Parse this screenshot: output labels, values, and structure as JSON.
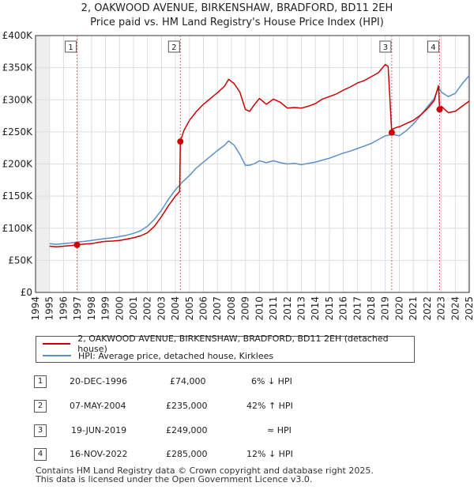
{
  "title_line1": "2, OAKWOOD AVENUE, BIRKENSHAW, BRADFORD, BD11 2EH",
  "title_line2": "Price paid vs. HM Land Registry's House Price Index (HPI)",
  "colors": {
    "property": "#cc0000",
    "hpi": "#5b8fc9",
    "grid": "#dddddd",
    "axis": "#333333",
    "shade": "#eeeeee",
    "vline": "#e06666"
  },
  "chart_data": {
    "type": "line",
    "title": "2, OAKWOOD AVENUE, BIRKENSHAW, BRADFORD, BD11 2EH - Price paid vs. HM Land Registry's House Price Index (HPI)",
    "xlabel": "",
    "ylabel": "",
    "xlim": [
      1994,
      2025
    ],
    "ylim": [
      0,
      400000
    ],
    "grid": true,
    "legend_position": "below",
    "y_ticks": [
      0,
      50000,
      100000,
      150000,
      200000,
      250000,
      300000,
      350000,
      400000
    ],
    "y_tick_labels": [
      "£0",
      "£50K",
      "£100K",
      "£150K",
      "£200K",
      "£250K",
      "£300K",
      "£350K",
      "£400K"
    ],
    "x_ticks": [
      "1994",
      "1995",
      "1996",
      "1997",
      "1998",
      "1999",
      "2000",
      "2001",
      "2002",
      "2003",
      "2004",
      "2005",
      "2006",
      "2007",
      "2008",
      "2009",
      "2010",
      "2011",
      "2012",
      "2013",
      "2014",
      "2015",
      "2016",
      "2017",
      "2018",
      "2019",
      "2020",
      "2021",
      "2022",
      "2023",
      "2024",
      "2025"
    ],
    "series": [
      {
        "name": "2, OAKWOOD AVENUE, BIRKENSHAW, BRADFORD, BD11 2EH (detached house)",
        "x": [
          1995.0,
          1995.5,
          1996.0,
          1996.5,
          1996.97,
          1997.5,
          1998.0,
          1998.5,
          1999.0,
          1999.5,
          2000.0,
          2000.5,
          2001.0,
          2001.5,
          2002.0,
          2002.5,
          2003.0,
          2003.5,
          2004.0,
          2004.3,
          2004.35,
          2004.6,
          2005.0,
          2005.5,
          2006.0,
          2006.5,
          2007.0,
          2007.5,
          2007.8,
          2008.2,
          2008.6,
          2009.0,
          2009.3,
          2009.7,
          2010.0,
          2010.5,
          2011.0,
          2011.5,
          2012.0,
          2012.5,
          2013.0,
          2013.5,
          2014.0,
          2014.5,
          2015.0,
          2015.5,
          2016.0,
          2016.5,
          2017.0,
          2017.5,
          2018.0,
          2018.5,
          2019.0,
          2019.2,
          2019.46,
          2019.5,
          2019.8,
          2020.0,
          2020.5,
          2021.0,
          2021.5,
          2022.0,
          2022.5,
          2022.8,
          2022.88,
          2023.0,
          2023.5,
          2024.0,
          2024.5,
          2025.0
        ],
        "values": [
          72000,
          71000,
          72000,
          73000,
          74000,
          75500,
          76000,
          78000,
          79500,
          80000,
          81000,
          83000,
          85000,
          88000,
          93000,
          103000,
          118000,
          135000,
          150000,
          157000,
          235000,
          252000,
          268000,
          282000,
          293000,
          302000,
          311000,
          321000,
          332000,
          325000,
          312000,
          285000,
          282000,
          294000,
          302000,
          293000,
          301000,
          296000,
          287000,
          288000,
          287000,
          290000,
          294000,
          301000,
          305000,
          309000,
          315000,
          320000,
          326000,
          330000,
          336000,
          342000,
          355000,
          352000,
          249000,
          254000,
          257000,
          258000,
          263000,
          268000,
          276000,
          286000,
          299000,
          322000,
          285000,
          290000,
          280000,
          282000,
          290000,
          298000
        ]
      },
      {
        "name": "HPI: Average price, detached house, Kirklees",
        "x": [
          1995.0,
          1995.5,
          1996.0,
          1996.5,
          1997.0,
          1997.5,
          1998.0,
          1998.5,
          1999.0,
          1999.5,
          2000.0,
          2000.5,
          2001.0,
          2001.5,
          2002.0,
          2002.5,
          2003.0,
          2003.5,
          2004.0,
          2004.5,
          2005.0,
          2005.5,
          2006.0,
          2006.5,
          2007.0,
          2007.5,
          2007.8,
          2008.2,
          2008.6,
          2009.0,
          2009.3,
          2009.7,
          2010.0,
          2010.5,
          2011.0,
          2011.5,
          2012.0,
          2012.5,
          2013.0,
          2013.5,
          2014.0,
          2014.5,
          2015.0,
          2015.5,
          2016.0,
          2016.5,
          2017.0,
          2017.5,
          2018.0,
          2018.5,
          2019.0,
          2019.5,
          2020.0,
          2020.5,
          2021.0,
          2021.5,
          2022.0,
          2022.5,
          2022.8,
          2023.0,
          2023.5,
          2024.0,
          2024.5,
          2025.0
        ],
        "values": [
          76000,
          75000,
          76000,
          77000,
          78500,
          79500,
          81000,
          82500,
          84000,
          85000,
          87000,
          89000,
          92000,
          96000,
          103000,
          114000,
          128000,
          145000,
          160000,
          172000,
          182000,
          194000,
          203000,
          212000,
          221000,
          229000,
          236000,
          229000,
          215000,
          198000,
          198000,
          201000,
          205000,
          202000,
          205000,
          202000,
          200000,
          201000,
          199000,
          201000,
          203000,
          206000,
          209000,
          213000,
          217000,
          220000,
          224000,
          228000,
          232000,
          238000,
          244000,
          246000,
          244000,
          252000,
          262000,
          275000,
          289000,
          302000,
          320000,
          312000,
          305000,
          310000,
          325000,
          338000
        ]
      }
    ],
    "markers": [
      {
        "label": "1",
        "x": 1996.97,
        "value": 74000
      },
      {
        "label": "2",
        "x": 2004.35,
        "value": 235000
      },
      {
        "label": "3",
        "x": 2019.46,
        "value": 249000
      },
      {
        "label": "4",
        "x": 2022.88,
        "value": 285000
      }
    ]
  },
  "legend": {
    "property": "2, OAKWOOD AVENUE, BIRKENSHAW, BRADFORD, BD11 2EH (detached house)",
    "hpi": "HPI: Average price, detached house, Kirklees"
  },
  "transactions": [
    {
      "num": "1",
      "date": "20-DEC-1996",
      "price": "£74,000",
      "hpi": "6% ↓ HPI"
    },
    {
      "num": "2",
      "date": "07-MAY-2004",
      "price": "£235,000",
      "hpi": "42% ↑ HPI"
    },
    {
      "num": "3",
      "date": "19-JUN-2019",
      "price": "£249,000",
      "hpi": "≈ HPI"
    },
    {
      "num": "4",
      "date": "16-NOV-2022",
      "price": "£285,000",
      "hpi": "12% ↓ HPI"
    }
  ],
  "footer": {
    "line1": "Contains HM Land Registry data © Crown copyright and database right 2025.",
    "line2": "This data is licensed under the Open Government Licence v3.0."
  }
}
